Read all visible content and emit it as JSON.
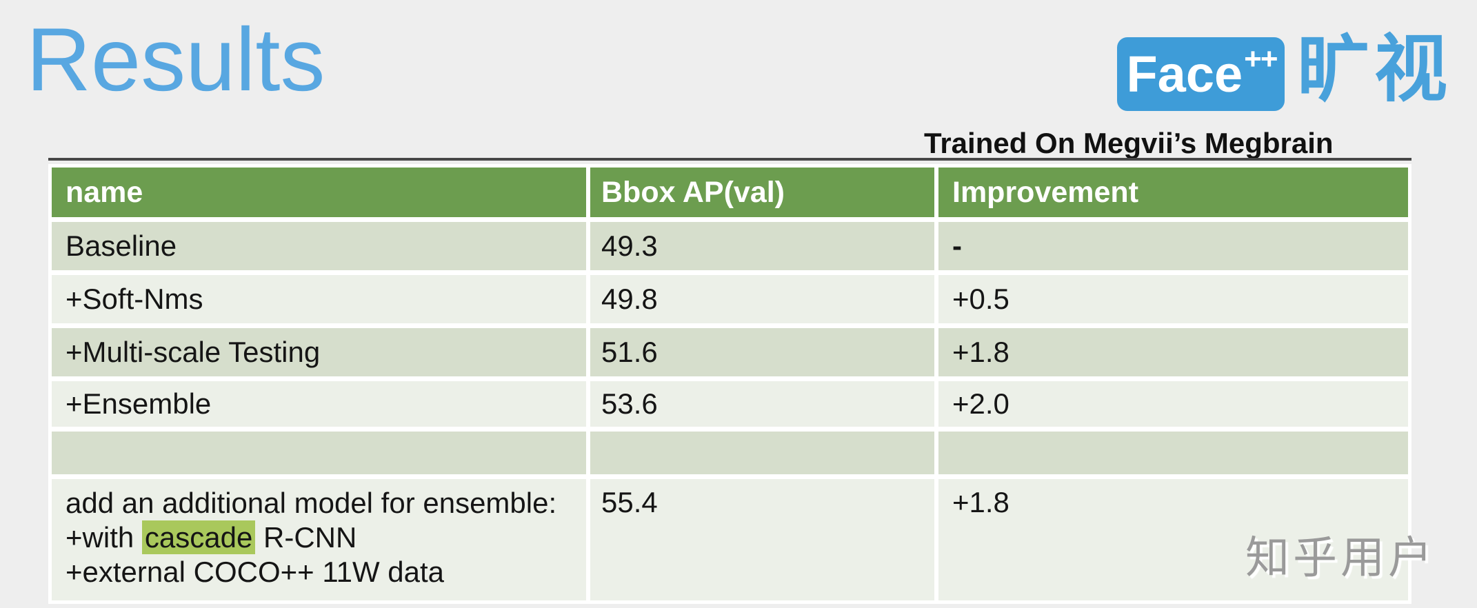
{
  "slide": {
    "title": "Results",
    "tagline": "Trained On Megvii’s Megbrain",
    "watermark": "知乎用户"
  },
  "logo": {
    "face_text": "Face",
    "plus_text": "++",
    "cn_text": "旷视"
  },
  "table": {
    "headers": [
      "name",
      "Bbox AP(val)",
      "Improvement"
    ],
    "rows": [
      {
        "name": "Baseline",
        "bbox_ap": "49.3",
        "improvement": "-"
      },
      {
        "name": "+Soft-Nms",
        "bbox_ap": "49.8",
        "improvement": "+0.5"
      },
      {
        "name": "+Multi-scale Testing",
        "bbox_ap": "51.6",
        "improvement": "+1.8"
      },
      {
        "name": "+Ensemble",
        "bbox_ap": "53.6",
        "improvement": "+2.0"
      },
      {
        "name": "",
        "bbox_ap": "",
        "improvement": ""
      },
      {
        "name_line1": "add an additional model for ensemble:",
        "name_line2_pre": "+with ",
        "name_line2_highlight": "cascade",
        "name_line2_post": " R-CNN",
        "name_line3": "+external COCO++ 11W data",
        "bbox_ap": "55.4",
        "improvement": "+1.8"
      }
    ]
  },
  "colors": {
    "background": "#EEEEEE",
    "title_blue": "#58A7E1",
    "logo_blue": "#3E9CD8",
    "cn_blue": "#48A1DB",
    "header_green": "#6C9D4F",
    "row_dark": "#D6DECC",
    "row_light": "#ECF0E8",
    "highlight_green": "#A9C85C",
    "watermark_gray": "#9A9A9A"
  }
}
